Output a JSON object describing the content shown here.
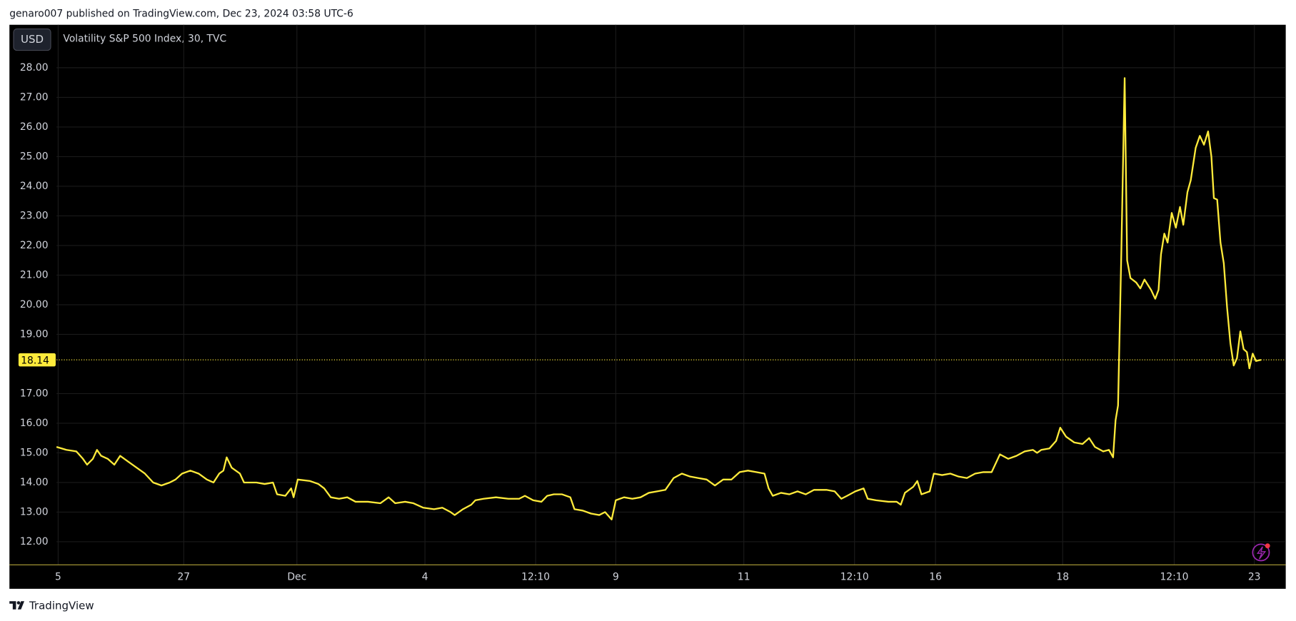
{
  "header": "genaro007 published on TradingView.com, Dec 23, 2024 03:58 UTC-6",
  "currency": "USD",
  "footer": "TradingView",
  "chart_data": {
    "type": "line",
    "title": "Volatility S&P 500 Index, 30, TVC",
    "color": "#ffeb3b",
    "price_label": 18.14,
    "grid": true,
    "xlim": [
      0,
      1488
    ],
    "ylim": [
      11.22,
      29.45
    ],
    "yticks": [
      {
        "value": 12,
        "label": "12.00"
      },
      {
        "value": 13,
        "label": "13.00"
      },
      {
        "value": 14,
        "label": "14.00"
      },
      {
        "value": 15,
        "label": "15.00"
      },
      {
        "value": 16,
        "label": "16.00"
      },
      {
        "value": 17,
        "label": "17.00"
      },
      {
        "value": 19,
        "label": "19.00"
      },
      {
        "value": 20,
        "label": "20.00"
      },
      {
        "value": 21,
        "label": "21.00"
      },
      {
        "value": 22,
        "label": "22.00"
      },
      {
        "value": 23,
        "label": "23.00"
      },
      {
        "value": 24,
        "label": "24.00"
      },
      {
        "value": 25,
        "label": "25.00"
      },
      {
        "value": 26,
        "label": "26.00"
      },
      {
        "value": 27,
        "label": "27.00"
      },
      {
        "value": 28,
        "label": "28.00"
      }
    ],
    "xticks": [
      {
        "value": 2,
        "label": "5"
      },
      {
        "value": 154,
        "label": "27"
      },
      {
        "value": 291,
        "label": "Dec"
      },
      {
        "value": 446,
        "label": "4"
      },
      {
        "value": 580,
        "label": "12:10"
      },
      {
        "value": 677,
        "label": "9"
      },
      {
        "value": 832,
        "label": "11"
      },
      {
        "value": 966,
        "label": "12:10"
      },
      {
        "value": 1064,
        "label": "16"
      },
      {
        "value": 1218,
        "label": "18"
      },
      {
        "value": 1353,
        "label": "12:10"
      },
      {
        "value": 1450,
        "label": "23"
      }
    ],
    "x": [
      0,
      12,
      24,
      32,
      37,
      44,
      49,
      54,
      62,
      70,
      77,
      87,
      97,
      107,
      117,
      127,
      137,
      144,
      152,
      162,
      172,
      182,
      190,
      197,
      202,
      206,
      212,
      222,
      227,
      242,
      252,
      262,
      267,
      277,
      284,
      287,
      292,
      307,
      317,
      324,
      332,
      342,
      352,
      362,
      377,
      392,
      402,
      410,
      422,
      432,
      444,
      457,
      467,
      477,
      482,
      492,
      502,
      507,
      517,
      532,
      547,
      560,
      567,
      577,
      587,
      594,
      602,
      612,
      622,
      627,
      637,
      647,
      657,
      664,
      672,
      677,
      687,
      697,
      707,
      717,
      727,
      737,
      747,
      757,
      767,
      777,
      787,
      797,
      807,
      817,
      827,
      837,
      847,
      857,
      862,
      867,
      877,
      887,
      897,
      907,
      917,
      932,
      942,
      950,
      957,
      967,
      977,
      982,
      992,
      1007,
      1017,
      1022,
      1027,
      1037,
      1042,
      1047,
      1057,
      1062,
      1072,
      1082,
      1092,
      1102,
      1112,
      1122,
      1132,
      1142,
      1152,
      1162,
      1172,
      1182,
      1187,
      1192,
      1202,
      1210,
      1215,
      1222,
      1232,
      1242,
      1250,
      1257,
      1267,
      1274,
      1279,
      1282,
      1285,
      1289,
      1293,
      1296,
      1300,
      1307,
      1312,
      1317,
      1325,
      1330,
      1334,
      1337,
      1341,
      1345,
      1350,
      1355,
      1360,
      1364,
      1369,
      1373,
      1379,
      1384,
      1389,
      1394,
      1398,
      1401,
      1405,
      1409,
      1413,
      1417,
      1421,
      1425,
      1429,
      1433,
      1437,
      1441,
      1444,
      1448,
      1452,
      1458
    ],
    "values": [
      15.2,
      15.1,
      15.05,
      14.8,
      14.6,
      14.8,
      15.1,
      14.9,
      14.8,
      14.6,
      14.9,
      14.7,
      14.5,
      14.3,
      14.0,
      13.9,
      14.0,
      14.1,
      14.3,
      14.4,
      14.3,
      14.1,
      14.0,
      14.3,
      14.4,
      14.85,
      14.5,
      14.3,
      14.0,
      14.0,
      13.95,
      14.0,
      13.6,
      13.55,
      13.8,
      13.5,
      14.1,
      14.05,
      13.95,
      13.8,
      13.5,
      13.45,
      13.5,
      13.35,
      13.35,
      13.3,
      13.5,
      13.3,
      13.35,
      13.3,
      13.15,
      13.1,
      13.15,
      13.0,
      12.9,
      13.1,
      13.25,
      13.4,
      13.45,
      13.5,
      13.45,
      13.45,
      13.55,
      13.4,
      13.35,
      13.55,
      13.6,
      13.6,
      13.5,
      13.1,
      13.05,
      12.95,
      12.9,
      13.0,
      12.75,
      13.4,
      13.5,
      13.45,
      13.5,
      13.65,
      13.7,
      13.75,
      14.15,
      14.3,
      14.2,
      14.15,
      14.1,
      13.9,
      14.1,
      14.1,
      14.35,
      14.4,
      14.35,
      14.3,
      13.8,
      13.55,
      13.65,
      13.6,
      13.7,
      13.6,
      13.75,
      13.75,
      13.7,
      13.45,
      13.55,
      13.7,
      13.8,
      13.45,
      13.4,
      13.35,
      13.35,
      13.25,
      13.65,
      13.85,
      14.05,
      13.6,
      13.7,
      14.3,
      14.25,
      14.3,
      14.2,
      14.15,
      14.3,
      14.35,
      14.35,
      14.95,
      14.8,
      14.9,
      15.05,
      15.1,
      15.0,
      15.1,
      15.15,
      15.4,
      15.85,
      15.55,
      15.35,
      15.3,
      15.5,
      15.2,
      15.05,
      15.1,
      14.85,
      16.1,
      16.6,
      21.8,
      27.65,
      21.5,
      20.9,
      20.75,
      20.55,
      20.85,
      20.5,
      20.2,
      20.5,
      21.7,
      22.4,
      22.1,
      23.1,
      22.6,
      23.3,
      22.7,
      23.8,
      24.2,
      25.3,
      25.7,
      25.4,
      25.85,
      25.0,
      23.6,
      23.55,
      22.1,
      21.4,
      19.9,
      18.7,
      17.95,
      18.2,
      19.1,
      18.5,
      18.4,
      17.85,
      18.35,
      18.1,
      18.14
    ]
  }
}
